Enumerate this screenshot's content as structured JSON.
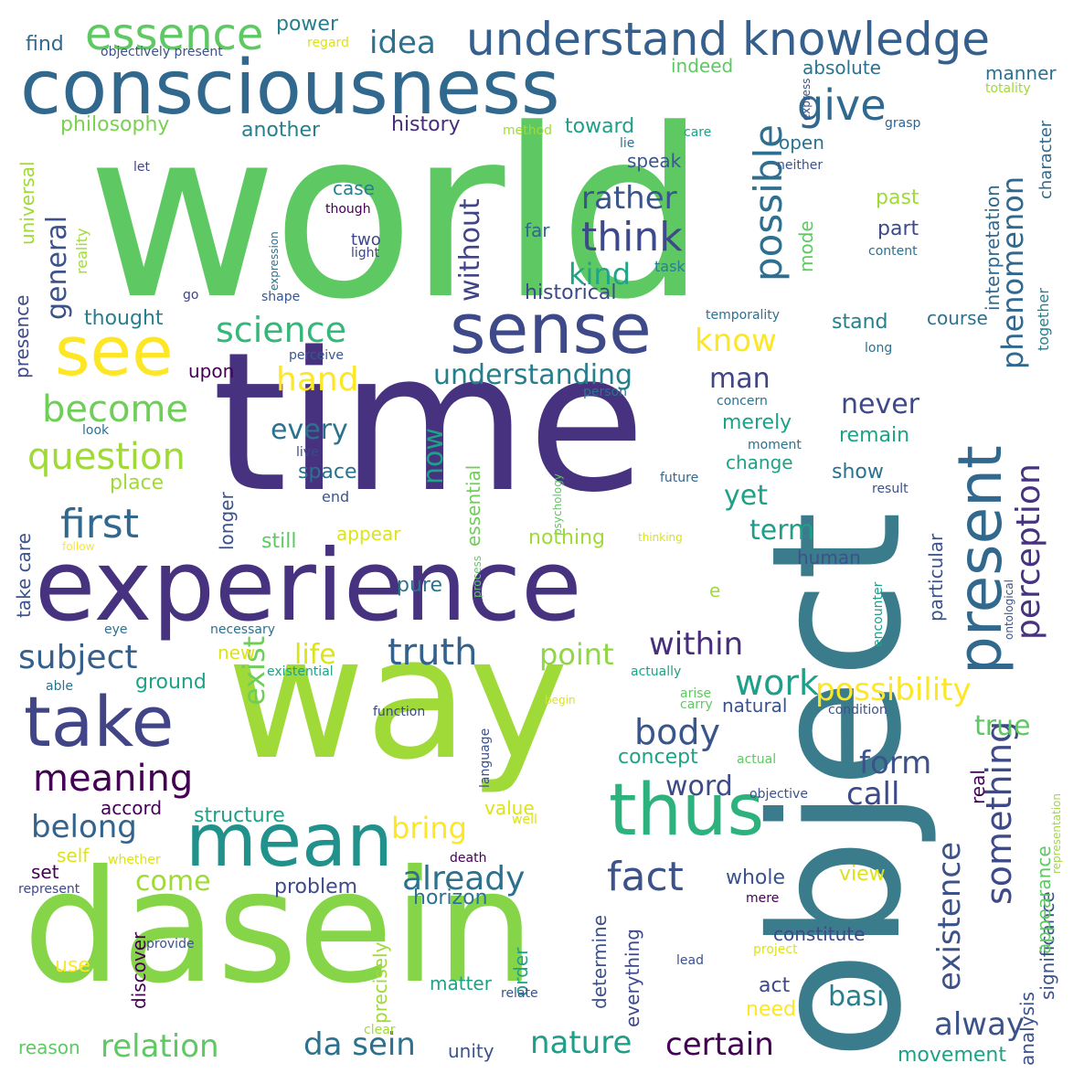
{
  "wordcloud": {
    "colors": {
      "dark_purple": "#440154",
      "indigo": "#46327e",
      "blue": "#365c8d",
      "teal": "#277f8e",
      "green_teal": "#1fa187",
      "green": "#4ac16d",
      "light_green": "#a0da39",
      "yellow": "#fde725"
    },
    "words": [
      "world",
      "object",
      "time",
      "experience",
      "way",
      "dasein",
      "consciousness",
      "see",
      "sense",
      "take",
      "mean",
      "thus",
      "present",
      "understand knowledge",
      "essence",
      "idea",
      "give",
      "possible",
      "phenomenon",
      "science",
      "think",
      "rather",
      "question",
      "become",
      "first",
      "hand",
      "understanding",
      "truth",
      "body",
      "meaning",
      "subject",
      "life",
      "point",
      "within",
      "work",
      "possibility",
      "perception",
      "something",
      "existence",
      "fact",
      "already",
      "da sein",
      "relation",
      "nature",
      "certain",
      "alway",
      "exist",
      "form",
      "call",
      "belong",
      "come",
      "bring",
      "word",
      "never",
      "every",
      "now",
      "without",
      "general",
      "kind",
      "know",
      "man",
      "philosophy",
      "another",
      "history",
      "toward",
      "open",
      "speak",
      "absolute",
      "manner",
      "power",
      "find",
      "objectively present",
      "regard",
      "indeed",
      "express",
      "totality",
      "care",
      "method",
      "lie",
      "grasp",
      "neither",
      "let",
      "universal",
      "reality",
      "case",
      "two",
      "far",
      "past",
      "part",
      "mode",
      "interpretation",
      "together",
      "character",
      "though",
      "light",
      "expression",
      "content",
      "go",
      "shape",
      "thought",
      "historical",
      "task",
      "temporality",
      "stand",
      "course",
      "perceive",
      "long",
      "upon",
      "presence",
      "look",
      "person",
      "concern",
      "merely",
      "remain",
      "live",
      "moment",
      "show",
      "future",
      "result",
      "space",
      "place",
      "end",
      "psychology",
      "essential",
      "change",
      "yet",
      "longer",
      "still",
      "appear",
      "nothing",
      "thinking",
      "follow",
      "term",
      "human",
      "particular",
      "take care",
      "process",
      "pure",
      "e",
      "ontological",
      "encounter",
      "eye",
      "necessary",
      "new",
      "able",
      "existential",
      "ground",
      "function",
      "language",
      "actually",
      "arise",
      "carry",
      "begin",
      "natural",
      "condition",
      "true",
      "concept",
      "actual",
      "real",
      "objective",
      "significance",
      "representation",
      "accord",
      "structure",
      "value",
      "well",
      "self",
      "whether",
      "death",
      "set",
      "represent",
      "problem",
      "horizon",
      "view",
      "whole",
      "mere",
      "appearance",
      "analysis",
      "discover",
      "provide",
      "order",
      "determine",
      "everything",
      "constitute",
      "project",
      "use",
      "precisely",
      "matter",
      "lead",
      "relate",
      "act",
      "basi",
      "need",
      "clear",
      "reason",
      "unity",
      "movement"
    ]
  }
}
